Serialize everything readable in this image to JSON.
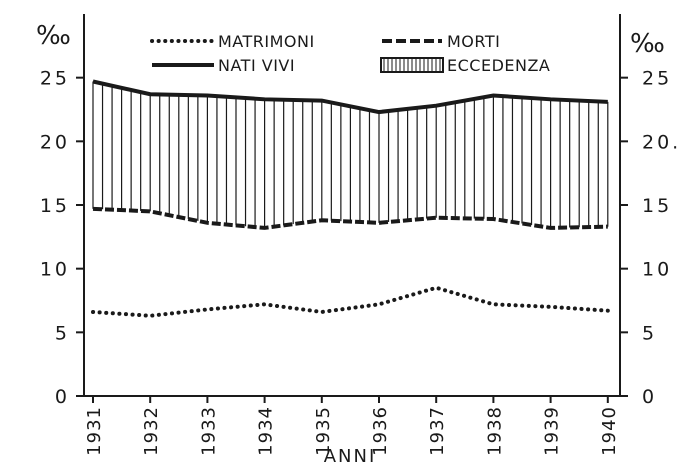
{
  "chart_data": {
    "type": "line",
    "unit_label": "‰",
    "xlabel": "ANNI",
    "x": [
      "1931",
      "1932",
      "1933",
      "1934",
      "1935",
      "1936",
      "1937",
      "1938",
      "1939",
      "1940"
    ],
    "ylim": [
      0,
      30
    ],
    "yticks": [
      "0",
      "5",
      "10",
      "15",
      "20",
      "25"
    ],
    "yticks_right": [
      "0",
      "5",
      "10",
      "15",
      "20.",
      "25"
    ],
    "series": [
      {
        "name": "MATRIMONI",
        "style": "dotted",
        "values": [
          6.6,
          6.3,
          6.8,
          7.2,
          6.6,
          7.2,
          8.5,
          7.2,
          7.0,
          6.7
        ]
      },
      {
        "name": "NATI VIVI",
        "style": "solid",
        "values": [
          24.7,
          23.7,
          23.6,
          23.3,
          23.2,
          22.3,
          22.8,
          23.6,
          23.3,
          23.1
        ]
      },
      {
        "name": "MORTI",
        "style": "dashed",
        "values": [
          14.7,
          14.5,
          13.6,
          13.2,
          13.8,
          13.6,
          14.0,
          13.9,
          13.2,
          13.3
        ]
      }
    ],
    "shaded_legend": "ECCEDENZA",
    "grid": false,
    "legend_position": "top-center",
    "colors": {
      "ink": "#1a1a1a",
      "background": "#ffffff"
    }
  }
}
